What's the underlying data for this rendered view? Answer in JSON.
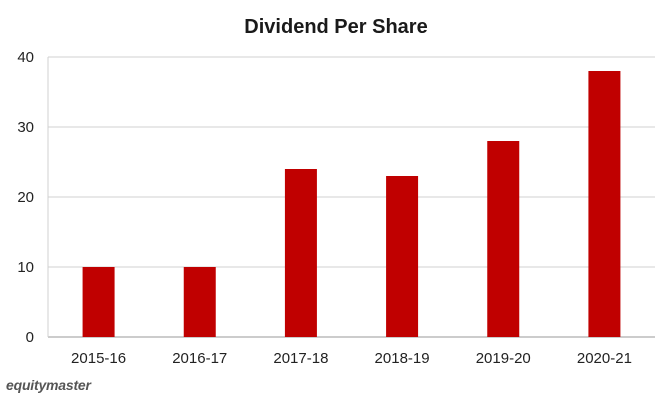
{
  "chart_data": {
    "type": "bar",
    "title": "Dividend Per Share",
    "xlabel": "",
    "ylabel": "",
    "categories": [
      "2015-16",
      "2016-17",
      "2017-18",
      "2018-19",
      "2019-20",
      "2020-21"
    ],
    "values": [
      10,
      10,
      24,
      23,
      28,
      38
    ],
    "ylim": [
      0,
      40
    ],
    "yticks": [
      0,
      10,
      20,
      30,
      40
    ],
    "grid": true,
    "legend": "none",
    "bar_color": "#c00000"
  },
  "watermark": "equitymaster"
}
